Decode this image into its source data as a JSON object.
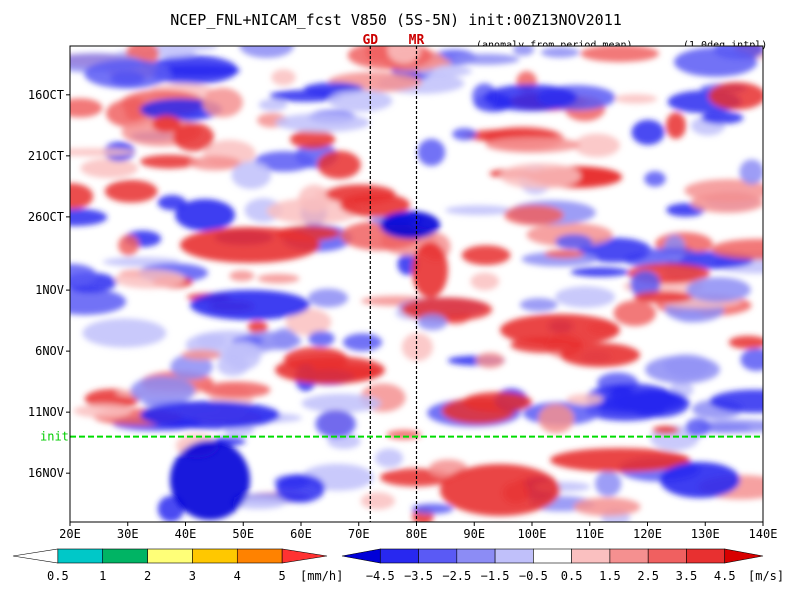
{
  "chart_data": {
    "type": "heatmap",
    "title": "NCEP_FNL+NICAM_fcst V850 (5S-5N) init:00Z13NOV2011",
    "subtitle_left": "(anomaly from period mean)",
    "subtitle_right": "(1.0deg intpl)",
    "x_range": [
      20,
      140
    ],
    "x_ticks": [
      {
        "value": 20,
        "label": "20E"
      },
      {
        "value": 30,
        "label": "30E"
      },
      {
        "value": 40,
        "label": "40E"
      },
      {
        "value": 50,
        "label": "50E"
      },
      {
        "value": 60,
        "label": "60E"
      },
      {
        "value": 70,
        "label": "70E"
      },
      {
        "value": 80,
        "label": "80E"
      },
      {
        "value": 90,
        "label": "90E"
      },
      {
        "value": 100,
        "label": "100E"
      },
      {
        "value": 110,
        "label": "110E"
      },
      {
        "value": 120,
        "label": "120E"
      },
      {
        "value": 130,
        "label": "130E"
      },
      {
        "value": 140,
        "label": "140E"
      }
    ],
    "y_range": [
      "2011-10-12",
      "2011-11-20"
    ],
    "y_ticks": [
      {
        "value": "2011-10-16",
        "label": "16OCT"
      },
      {
        "value": "2011-10-21",
        "label": "21OCT"
      },
      {
        "value": "2011-10-26",
        "label": "26OCT"
      },
      {
        "value": "2011-11-01",
        "label": "1NOV"
      },
      {
        "value": "2011-11-06",
        "label": "6NOV"
      },
      {
        "value": "2011-11-11",
        "label": "11NOV"
      },
      {
        "value": "2011-11-16",
        "label": "16NOV"
      }
    ],
    "init_line": {
      "value": "2011-11-13",
      "label": "init",
      "color": "#00dd00"
    },
    "reference_lines": [
      {
        "label": "GD",
        "lon": 72
      },
      {
        "label": "MR",
        "lon": 80
      }
    ],
    "precip_colorbar": {
      "unit": "[mm/h]",
      "levels": [
        "0.5",
        "1",
        "2",
        "3",
        "4",
        "5"
      ],
      "colors": [
        "#ffffff",
        "#00c8c8",
        "#00b464",
        "#ffff78",
        "#ffc800",
        "#ff8200",
        "#ff3232"
      ]
    },
    "v850_colorbar": {
      "unit": "[m/s]",
      "levels": [
        "−4.5",
        "−3.5",
        "−2.5",
        "−1.5",
        "−0.5",
        "0.5",
        "1.5",
        "2.5",
        "3.5",
        "4.5"
      ],
      "colors": [
        "#0000d8",
        "#2828f0",
        "#5a5af5",
        "#8c8cf5",
        "#c0c0fa",
        "#ffffff",
        "#fac0c0",
        "#f59090",
        "#f06060",
        "#e83030",
        "#d80000"
      ]
    }
  }
}
